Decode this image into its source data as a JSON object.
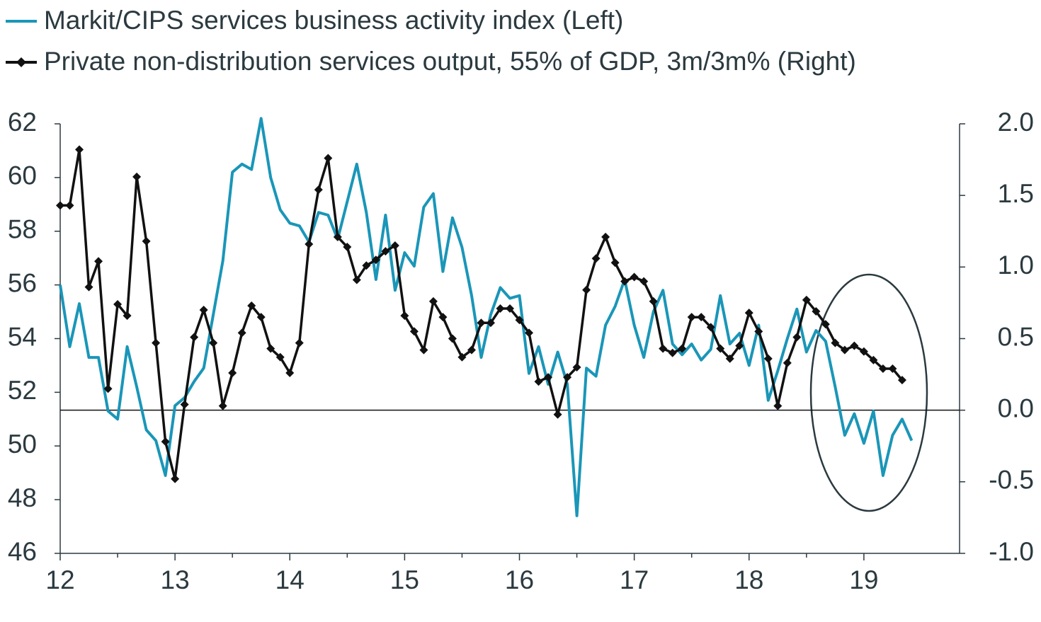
{
  "chart_data": {
    "type": "line",
    "categories": [
      "12",
      null,
      null,
      null,
      null,
      null,
      null,
      null,
      null,
      null,
      null,
      null,
      "13",
      null,
      null,
      null,
      null,
      null,
      null,
      null,
      null,
      null,
      null,
      null,
      "14",
      null,
      null,
      null,
      null,
      null,
      null,
      null,
      null,
      null,
      null,
      null,
      "15",
      null,
      null,
      null,
      null,
      null,
      null,
      null,
      null,
      null,
      null,
      null,
      "16",
      null,
      null,
      null,
      null,
      null,
      null,
      null,
      null,
      null,
      null,
      null,
      "17",
      null,
      null,
      null,
      null,
      null,
      null,
      null,
      null,
      null,
      null,
      null,
      "18",
      null,
      null,
      null,
      null,
      null,
      null,
      null,
      null,
      null,
      null,
      null,
      "19",
      null,
      null,
      null,
      null,
      null
    ],
    "series": [
      {
        "name": "Markit/CIPS services business activity index (Left)",
        "color": "#1a96b8",
        "axis": "y",
        "values": [
          56.0,
          53.7,
          55.3,
          53.3,
          53.3,
          51.3,
          51.0,
          53.7,
          52.2,
          50.6,
          50.2,
          48.9,
          51.5,
          51.8,
          52.4,
          52.9,
          54.9,
          56.9,
          60.2,
          60.5,
          60.3,
          62.2,
          60.0,
          58.8,
          58.3,
          58.2,
          57.6,
          58.7,
          58.6,
          57.7,
          59.1,
          60.5,
          58.7,
          56.2,
          58.6,
          55.8,
          57.2,
          56.7,
          58.9,
          59.4,
          56.5,
          58.5,
          57.4,
          55.6,
          53.3,
          54.9,
          55.9,
          55.5,
          55.6,
          52.7,
          53.7,
          52.3,
          53.5,
          52.3,
          47.4,
          52.9,
          52.6,
          54.5,
          55.2,
          56.2,
          54.5,
          53.3,
          55.0,
          55.8,
          53.8,
          53.4,
          53.8,
          53.2,
          53.6,
          55.6,
          53.8,
          54.2,
          53.0,
          54.5,
          51.7,
          52.8,
          54.0,
          55.1,
          53.5,
          54.3,
          53.9,
          52.2,
          50.4,
          51.2,
          50.1,
          51.3,
          48.9,
          50.4,
          51.0,
          50.2
        ]
      },
      {
        "name": "Private non-distribution services output, 55% of GDP, 3m/3m% (Right)",
        "color": "#111111",
        "axis": "y2",
        "values": [
          1.43,
          1.43,
          1.82,
          0.86,
          1.04,
          0.15,
          0.74,
          0.66,
          1.63,
          1.18,
          0.47,
          -0.22,
          -0.48,
          0.04,
          0.51,
          0.7,
          0.47,
          0.03,
          0.26,
          0.54,
          0.73,
          0.65,
          0.43,
          0.37,
          0.26,
          0.47,
          1.16,
          1.54,
          1.76,
          1.21,
          1.14,
          0.91,
          1.01,
          1.05,
          1.11,
          1.15,
          0.66,
          0.55,
          0.42,
          0.76,
          0.65,
          0.5,
          0.37,
          0.42,
          0.61,
          0.61,
          0.71,
          0.71,
          0.63,
          0.54,
          0.2,
          0.23,
          -0.03,
          0.23,
          0.3,
          0.84,
          1.06,
          1.21,
          1.03,
          0.9,
          0.93,
          0.9,
          0.76,
          0.43,
          0.4,
          0.43,
          0.65,
          0.65,
          0.58,
          0.43,
          0.36,
          0.45,
          0.68,
          0.55,
          0.36,
          0.03,
          0.33,
          0.51,
          0.77,
          0.69,
          0.6,
          0.47,
          0.42,
          0.45,
          0.41,
          0.35,
          0.29,
          0.29,
          0.21,
          null
        ]
      }
    ],
    "ylim": [
      46,
      62
    ],
    "yticks": [
      46,
      48,
      50,
      52,
      54,
      56,
      58,
      60,
      62
    ],
    "y2lim": [
      -1.0,
      2.0
    ],
    "y2ticks": [
      {
        "value": -1.0,
        "label": "-1.0"
      },
      {
        "value": -0.5,
        "label": "-0.5"
      },
      {
        "value": 0,
        "label": "0.0"
      },
      {
        "value": 0.5,
        "label": "0.5"
      },
      {
        "value": 1.0,
        "label": "1.0"
      },
      {
        "value": 1.5,
        "label": "1.5"
      },
      {
        "value": 2.0,
        "label": "2.0"
      }
    ]
  }
}
